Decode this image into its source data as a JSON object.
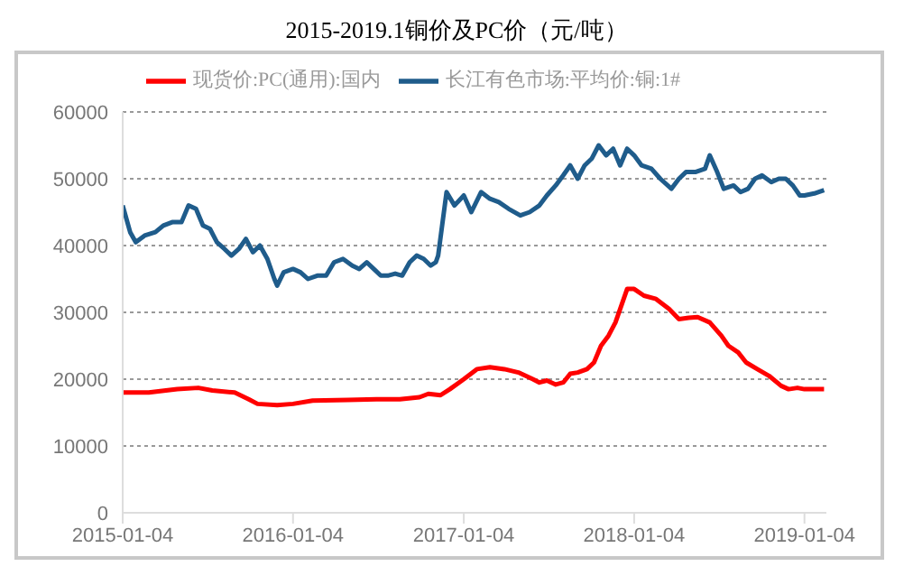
{
  "chart_data": {
    "type": "line",
    "title": "2015-2019.1铜价及PC价（元/吨）",
    "legend": "top",
    "grid": "y",
    "marker": "none",
    "line_style": "solid",
    "xlim": [
      "2015-01-04",
      "2019-02-20"
    ],
    "xticks": [
      "2015-01-04",
      "2016-01-04",
      "2017-01-04",
      "2018-01-04",
      "2019-01-04"
    ],
    "ylim": [
      0,
      60000
    ],
    "yticks": [
      0,
      10000,
      20000,
      30000,
      40000,
      50000,
      60000
    ],
    "series": [
      {
        "name": "现货价:PC(通用):国内",
        "color": "#ff0000",
        "x": [
          "2015-01-04",
          "2015-03-01",
          "2015-05-01",
          "2015-06-15",
          "2015-07-15",
          "2015-09-01",
          "2015-10-01",
          "2015-10-20",
          "2015-12-01",
          "2016-01-04",
          "2016-02-15",
          "2016-05-01",
          "2016-07-01",
          "2016-08-20",
          "2016-10-01",
          "2016-10-20",
          "2016-11-15",
          "2016-12-05",
          "2016-12-25",
          "2017-01-04",
          "2017-02-01",
          "2017-03-01",
          "2017-04-01",
          "2017-05-01",
          "2017-06-01",
          "2017-06-15",
          "2017-07-01",
          "2017-07-20",
          "2017-08-05",
          "2017-08-20",
          "2017-09-05",
          "2017-09-25",
          "2017-10-10",
          "2017-10-25",
          "2017-11-10",
          "2017-11-25",
          "2017-12-05",
          "2017-12-20",
          "2018-01-04",
          "2018-01-25",
          "2018-02-20",
          "2018-03-20",
          "2018-04-10",
          "2018-05-01",
          "2018-05-20",
          "2018-06-15",
          "2018-07-10",
          "2018-07-25",
          "2018-08-15",
          "2018-09-01",
          "2018-09-25",
          "2018-10-20",
          "2018-11-15",
          "2018-12-01",
          "2018-12-20",
          "2019-01-04",
          "2019-02-15"
        ],
        "values": [
          18000,
          18000,
          18500,
          18700,
          18300,
          18000,
          17000,
          16300,
          16100,
          16300,
          16800,
          16900,
          17000,
          17000,
          17300,
          17800,
          17600,
          18500,
          19500,
          20000,
          21500,
          21800,
          21500,
          21000,
          20000,
          19500,
          19800,
          19200,
          19500,
          20800,
          21000,
          21500,
          22500,
          25000,
          26500,
          28500,
          30500,
          33500,
          33500,
          32500,
          32000,
          30500,
          29000,
          29200,
          29300,
          28500,
          26500,
          25000,
          24000,
          22500,
          21500,
          20500,
          19000,
          18500,
          18700,
          18500,
          18500
        ]
      },
      {
        "name": "长江有色市场:平均价:铜:1#",
        "color": "#1f5c8b",
        "x": [
          "2015-01-04",
          "2015-01-20",
          "2015-02-01",
          "2015-02-20",
          "2015-03-15",
          "2015-04-01",
          "2015-04-20",
          "2015-05-10",
          "2015-05-25",
          "2015-06-10",
          "2015-06-25",
          "2015-07-10",
          "2015-07-25",
          "2015-08-10",
          "2015-08-25",
          "2015-09-10",
          "2015-09-25",
          "2015-10-10",
          "2015-10-25",
          "2015-11-10",
          "2015-11-25",
          "2015-12-01",
          "2015-12-15",
          "2016-01-04",
          "2016-01-20",
          "2016-02-05",
          "2016-02-25",
          "2016-03-15",
          "2016-04-01",
          "2016-04-20",
          "2016-05-10",
          "2016-05-25",
          "2016-06-10",
          "2016-06-25",
          "2016-07-10",
          "2016-07-25",
          "2016-08-10",
          "2016-08-25",
          "2016-09-10",
          "2016-09-25",
          "2016-10-10",
          "2016-10-25",
          "2016-11-05",
          "2016-11-10",
          "2016-11-28",
          "2016-12-15",
          "2017-01-04",
          "2017-01-20",
          "2017-02-10",
          "2017-03-01",
          "2017-03-20",
          "2017-04-10",
          "2017-05-05",
          "2017-05-25",
          "2017-06-15",
          "2017-07-01",
          "2017-07-20",
          "2017-08-05",
          "2017-08-20",
          "2017-09-05",
          "2017-09-20",
          "2017-10-05",
          "2017-10-20",
          "2017-11-05",
          "2017-11-20",
          "2017-12-05",
          "2017-12-20",
          "2018-01-04",
          "2018-01-20",
          "2018-02-10",
          "2018-03-01",
          "2018-03-25",
          "2018-04-10",
          "2018-04-25",
          "2018-05-15",
          "2018-06-05",
          "2018-06-15",
          "2018-07-01",
          "2018-07-15",
          "2018-08-05",
          "2018-08-20",
          "2018-09-05",
          "2018-09-20",
          "2018-10-05",
          "2018-10-25",
          "2018-11-10",
          "2018-11-25",
          "2018-12-10",
          "2018-12-25",
          "2019-01-04",
          "2019-01-25",
          "2019-02-15"
        ],
        "values": [
          46000,
          42000,
          40500,
          41500,
          42000,
          43000,
          43500,
          43500,
          46000,
          45500,
          43000,
          42500,
          40500,
          39500,
          38500,
          39500,
          41000,
          39000,
          40000,
          38000,
          35000,
          34000,
          36000,
          36500,
          36000,
          35000,
          35500,
          35500,
          37500,
          38000,
          37000,
          36500,
          37500,
          36500,
          35500,
          35500,
          35800,
          35500,
          37500,
          38500,
          38000,
          37000,
          37500,
          38500,
          48000,
          46000,
          47500,
          45000,
          48000,
          47000,
          46500,
          45500,
          44500,
          45000,
          46000,
          47500,
          49000,
          50500,
          52000,
          50000,
          52000,
          53000,
          55000,
          53500,
          54500,
          52000,
          54500,
          53500,
          52000,
          51500,
          50000,
          48500,
          50000,
          51000,
          51000,
          51500,
          53500,
          51000,
          48500,
          49000,
          48000,
          48500,
          50000,
          50500,
          49500,
          50000,
          50000,
          49000,
          47500,
          47500,
          47800,
          48300
        ]
      }
    ]
  }
}
